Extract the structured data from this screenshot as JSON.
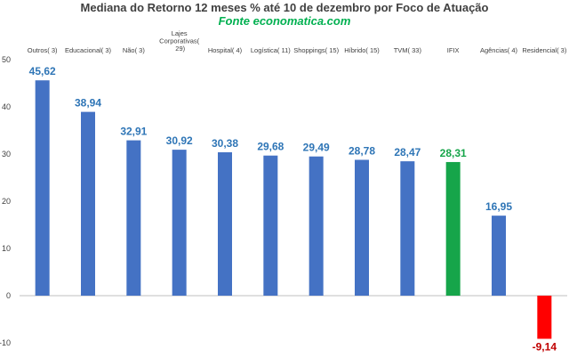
{
  "chart_data": {
    "type": "bar",
    "title": "Mediana do Retorno 12 meses % até 10 de dezembro por Foco de Atuação",
    "subtitle": "Fonte economatica.com",
    "categories": [
      "Outros( 3)",
      "Educacional( 3)",
      "Não( 3)",
      "Lajes Corporativas( 29)",
      "Hospital( 4)",
      "Logística( 11)",
      "Shoppings( 15)",
      "Híbrido( 15)",
      "TVM( 33)",
      "IFIX",
      "Agências( 4)",
      "Residencial( 3)"
    ],
    "values": [
      45.62,
      38.94,
      32.91,
      30.92,
      30.38,
      29.68,
      29.49,
      28.78,
      28.47,
      28.31,
      16.95,
      -9.14
    ],
    "value_labels": [
      "45,62",
      "38,94",
      "32,91",
      "30,92",
      "30,38",
      "29,68",
      "29,49",
      "28,78",
      "28,47",
      "28,31",
      "16,95",
      "-9,14"
    ],
    "bar_colors": [
      "#4472c4",
      "#4472c4",
      "#4472c4",
      "#4472c4",
      "#4472c4",
      "#4472c4",
      "#4472c4",
      "#4472c4",
      "#4472c4",
      "#16a54a",
      "#4472c4",
      "#ff0000"
    ],
    "label_colors": [
      "#2e75b6",
      "#2e75b6",
      "#2e75b6",
      "#2e75b6",
      "#2e75b6",
      "#2e75b6",
      "#2e75b6",
      "#2e75b6",
      "#2e75b6",
      "#16a54a",
      "#2e75b6",
      "#c00000"
    ],
    "yticks": [
      -10,
      0,
      10,
      20,
      30,
      40,
      50
    ],
    "ylim": [
      -10,
      50
    ],
    "grid": false,
    "legend": "none"
  }
}
